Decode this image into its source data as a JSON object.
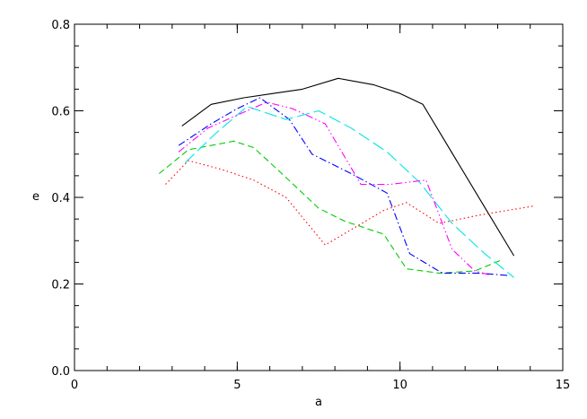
{
  "chart_data": {
    "type": "line",
    "xlabel": "a",
    "ylabel": "e",
    "xlim": [
      0,
      15
    ],
    "ylim": [
      0,
      0.8
    ],
    "x_major_ticks": [
      0,
      5,
      10,
      15
    ],
    "x_tick_labels": [
      "0",
      "5",
      "10",
      "15"
    ],
    "x_minor_step": 1,
    "y_major_ticks": [
      0.0,
      0.2,
      0.4,
      0.6,
      0.8
    ],
    "y_tick_labels": [
      "0.0",
      "0.2",
      "0.4",
      "0.6",
      "0.8"
    ],
    "y_minor_step": 0.05,
    "grid": false,
    "series": [
      {
        "color": "#000000",
        "style": "solid",
        "points": [
          [
            3.3,
            0.565
          ],
          [
            4.2,
            0.615
          ],
          [
            5.2,
            0.63
          ],
          [
            6.1,
            0.64
          ],
          [
            7.0,
            0.65
          ],
          [
            8.1,
            0.675
          ],
          [
            9.2,
            0.66
          ],
          [
            10.0,
            0.64
          ],
          [
            10.7,
            0.615
          ],
          [
            12.5,
            0.39
          ],
          [
            13.5,
            0.265
          ]
        ]
      },
      {
        "color": "#ff0000",
        "style": "dotted",
        "points": [
          [
            2.8,
            0.43
          ],
          [
            3.5,
            0.485
          ],
          [
            4.5,
            0.465
          ],
          [
            5.5,
            0.44
          ],
          [
            6.5,
            0.4
          ],
          [
            7.7,
            0.29
          ],
          [
            8.6,
            0.33
          ],
          [
            9.5,
            0.37
          ],
          [
            10.2,
            0.388
          ],
          [
            11.2,
            0.34
          ],
          [
            12.5,
            0.36
          ],
          [
            14.1,
            0.38
          ]
        ]
      },
      {
        "color": "#00cc00",
        "style": "dashed",
        "points": [
          [
            2.6,
            0.455
          ],
          [
            3.5,
            0.51
          ],
          [
            4.2,
            0.52
          ],
          [
            4.9,
            0.53
          ],
          [
            5.5,
            0.515
          ],
          [
            6.3,
            0.46
          ],
          [
            7.5,
            0.375
          ],
          [
            8.3,
            0.345
          ],
          [
            9.5,
            0.315
          ],
          [
            10.2,
            0.235
          ],
          [
            11.2,
            0.225
          ],
          [
            12.3,
            0.23
          ],
          [
            13.1,
            0.255
          ]
        ]
      },
      {
        "color": "#0000ff",
        "style": "dashdot",
        "points": [
          [
            3.2,
            0.52
          ],
          [
            4.2,
            0.57
          ],
          [
            5.0,
            0.605
          ],
          [
            5.7,
            0.63
          ],
          [
            6.6,
            0.58
          ],
          [
            7.3,
            0.5
          ],
          [
            8.5,
            0.455
          ],
          [
            9.6,
            0.41
          ],
          [
            10.3,
            0.27
          ],
          [
            11.3,
            0.225
          ],
          [
            12.4,
            0.225
          ],
          [
            13.3,
            0.22
          ]
        ]
      },
      {
        "color": "#00e5e5",
        "style": "longdash",
        "points": [
          [
            3.4,
            0.48
          ],
          [
            4.3,
            0.545
          ],
          [
            5.3,
            0.61
          ],
          [
            6.5,
            0.58
          ],
          [
            7.5,
            0.6
          ],
          [
            8.5,
            0.56
          ],
          [
            9.6,
            0.505
          ],
          [
            10.6,
            0.435
          ],
          [
            11.6,
            0.34
          ],
          [
            12.6,
            0.27
          ],
          [
            13.5,
            0.215
          ]
        ]
      },
      {
        "color": "#ff00ff",
        "style": "dashdotdot",
        "points": [
          [
            3.2,
            0.505
          ],
          [
            4.1,
            0.56
          ],
          [
            5.0,
            0.59
          ],
          [
            5.9,
            0.62
          ],
          [
            6.7,
            0.605
          ],
          [
            7.7,
            0.57
          ],
          [
            8.8,
            0.43
          ],
          [
            9.7,
            0.43
          ],
          [
            10.8,
            0.44
          ],
          [
            11.6,
            0.28
          ],
          [
            12.3,
            0.23
          ],
          [
            12.8,
            0.22
          ]
        ]
      }
    ]
  }
}
